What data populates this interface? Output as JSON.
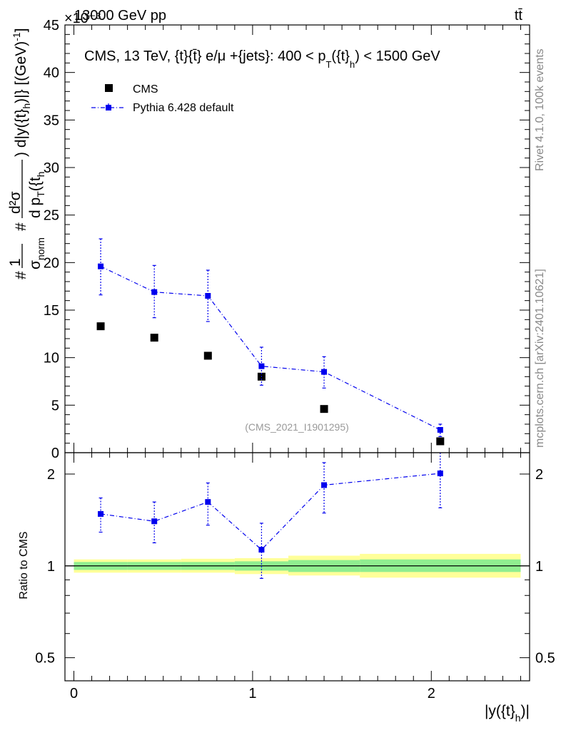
{
  "header": {
    "left_label": "13000 GeV pp",
    "right_label": "tt̄",
    "exponent_label": "×10⁻³"
  },
  "side_labels": {
    "rivet": "Rivet 4.1.0,  100k events",
    "mcplots": "mcplots.cern.ch [arXiv:2401.10621]"
  },
  "colors": {
    "mc": "#0000ee",
    "data": "#000000",
    "band_inner": "#90ee90",
    "band_outer": "#ffff99"
  },
  "chart_data": [
    {
      "type": "scatter",
      "panel": "main",
      "title": "CMS, 13 TeV, {t}{t̄} e/μ +{jets}: 400 <  p_T({t}_h) < 1500 GeV",
      "title_parts": {
        "prefix": "CMS, 13 TeV, {t}{t̄} e/μ +{jets}: 400 <  p",
        "sub1": "T",
        "mid": "({t}",
        "sub2": "h",
        "suffix": ") < 1500 GeV"
      },
      "watermark": "(CMS_2021_I1901295)",
      "ylabel": "# 1/σ_norm # d²σ / d p_T({t}_h) d|y({t}_h)| [(GeV)⁻¹]",
      "ylabel_parts": {
        "hash": "#",
        "one": "1",
        "sigma_norm": "σ",
        "norm": "norm",
        "hash2": "#",
        "num": "d²σ",
        "den": "d p",
        "den_sub": "T",
        "den_rest": "({t",
        "den_sub2": "h",
        "right": ") d|y({t}",
        "right_sub": "h",
        "right_end": ")|} [(GeV)",
        "sup": "-1",
        "close": "]"
      },
      "xlabel": "|y({t}_h)|",
      "xlabel_parts": {
        "main": "|y({t}",
        "sub": "h",
        "end": ")|"
      },
      "xlim": [
        -0.05,
        2.55
      ],
      "ylim": [
        0,
        45
      ],
      "y_scale_factor": "1e-3",
      "y_ticks": [
        0,
        5,
        10,
        15,
        20,
        25,
        30,
        35,
        40,
        45
      ],
      "x_ticks": [
        0,
        1,
        2
      ],
      "legend_position": "top-left",
      "series": [
        {
          "name": "CMS",
          "style": "black squares",
          "points": [
            {
              "x": 0.15,
              "y": 13.3,
              "xlo": 0.0,
              "xhi": 0.3
            },
            {
              "x": 0.45,
              "y": 12.1,
              "xlo": 0.3,
              "xhi": 0.6
            },
            {
              "x": 0.75,
              "y": 10.2,
              "xlo": 0.6,
              "xhi": 0.9
            },
            {
              "x": 1.05,
              "y": 8.0,
              "xlo": 0.9,
              "xhi": 1.2
            },
            {
              "x": 1.4,
              "y": 4.6,
              "xlo": 1.2,
              "xhi": 1.6
            },
            {
              "x": 2.05,
              "y": 1.2,
              "xlo": 1.6,
              "xhi": 2.5
            }
          ]
        },
        {
          "name": "Pythia 6.428 default",
          "style": "blue dash-dot line with squares",
          "points": [
            {
              "x": 0.15,
              "y": 19.6,
              "yerr_lo": 3.0,
              "yerr_hi": 2.9
            },
            {
              "x": 0.45,
              "y": 16.9,
              "yerr_lo": 2.7,
              "yerr_hi": 2.8
            },
            {
              "x": 0.75,
              "y": 16.5,
              "yerr_lo": 2.7,
              "yerr_hi": 2.7
            },
            {
              "x": 1.05,
              "y": 9.1,
              "yerr_lo": 2.0,
              "yerr_hi": 2.0
            },
            {
              "x": 1.4,
              "y": 8.5,
              "yerr_lo": 1.7,
              "yerr_hi": 1.6
            },
            {
              "x": 2.05,
              "y": 2.4,
              "yerr_lo": 0.7,
              "yerr_hi": 0.6
            }
          ]
        }
      ]
    },
    {
      "type": "scatter",
      "panel": "ratio",
      "ylabel": "Ratio to CMS",
      "yscale": "log",
      "ylim": [
        0.42,
        2.35
      ],
      "y_ticks": [
        0.5,
        1,
        2
      ],
      "y_tick_labels": [
        "0.5",
        "1",
        "2"
      ],
      "reference_line": 1,
      "bands": [
        {
          "xlo": 0.0,
          "xhi": 0.3,
          "inner_lo": 0.97,
          "inner_hi": 1.03,
          "outer_lo": 0.95,
          "outer_hi": 1.05
        },
        {
          "xlo": 0.3,
          "xhi": 0.6,
          "inner_lo": 0.97,
          "inner_hi": 1.03,
          "outer_lo": 0.95,
          "outer_hi": 1.05
        },
        {
          "xlo": 0.6,
          "xhi": 0.9,
          "inner_lo": 0.97,
          "inner_hi": 1.03,
          "outer_lo": 0.95,
          "outer_hi": 1.055
        },
        {
          "xlo": 0.9,
          "xhi": 1.2,
          "inner_lo": 0.965,
          "inner_hi": 1.035,
          "outer_lo": 0.94,
          "outer_hi": 1.06
        },
        {
          "xlo": 1.2,
          "xhi": 1.6,
          "inner_lo": 0.955,
          "inner_hi": 1.045,
          "outer_lo": 0.93,
          "outer_hi": 1.08
        },
        {
          "xlo": 1.6,
          "xhi": 2.5,
          "inner_lo": 0.955,
          "inner_hi": 1.05,
          "outer_lo": 0.915,
          "outer_hi": 1.095
        }
      ],
      "series": [
        {
          "name": "Pythia 6.428 default",
          "points": [
            {
              "x": 0.15,
              "y": 1.48,
              "lo": 1.29,
              "hi": 1.67
            },
            {
              "x": 0.45,
              "y": 1.4,
              "lo": 1.19,
              "hi": 1.62
            },
            {
              "x": 0.75,
              "y": 1.62,
              "lo": 1.36,
              "hi": 1.87
            },
            {
              "x": 1.05,
              "y": 1.13,
              "lo": 0.91,
              "hi": 1.38
            },
            {
              "x": 1.4,
              "y": 1.84,
              "lo": 1.49,
              "hi": 2.18
            },
            {
              "x": 2.05,
              "y": 2.01,
              "lo": 1.55,
              "hi": 2.45
            }
          ]
        }
      ]
    }
  ],
  "legend": {
    "items": [
      {
        "label": "CMS"
      },
      {
        "label": "Pythia 6.428 default"
      }
    ]
  }
}
